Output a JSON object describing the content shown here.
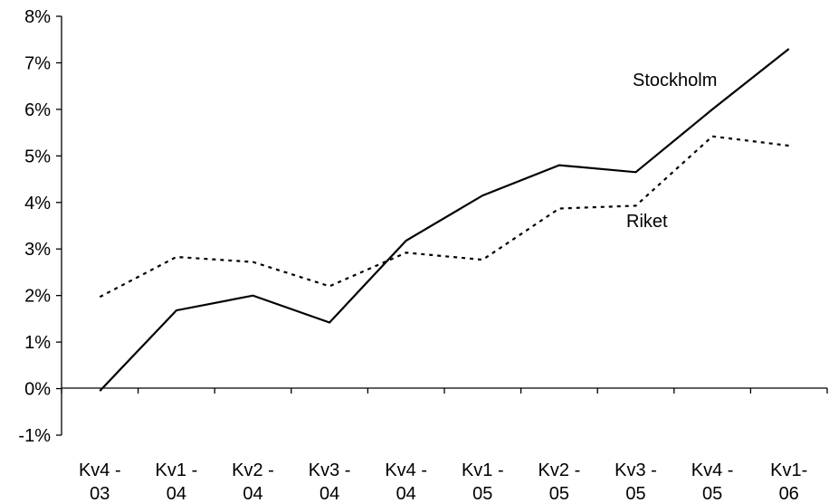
{
  "chart_data": {
    "type": "line",
    "categories": [
      [
        "Kv4 -",
        "03"
      ],
      [
        "Kv1 -",
        "04"
      ],
      [
        "Kv2 -",
        "04"
      ],
      [
        "Kv3 -",
        "04"
      ],
      [
        "Kv4 -",
        "04"
      ],
      [
        "Kv1 -",
        "05"
      ],
      [
        "Kv2 -",
        "05"
      ],
      [
        "Kv3 -",
        "05"
      ],
      [
        "Kv4 -",
        "05"
      ],
      [
        "Kv1-",
        "06"
      ]
    ],
    "y_ticks": [
      "8%",
      "7%",
      "6%",
      "5%",
      "4%",
      "3%",
      "2%",
      "1%",
      "0%",
      "-1%"
    ],
    "ylim": [
      -1,
      8
    ],
    "y_unit": "%",
    "grid": false,
    "legend": "inline labels",
    "series": [
      {
        "name": "Stockholm",
        "style": "solid",
        "color": "#000000",
        "values": [
          -0.05,
          1.68,
          2.0,
          1.42,
          3.18,
          4.15,
          4.8,
          4.65,
          6.0,
          7.3
        ]
      },
      {
        "name": "Riket",
        "style": "dotted",
        "color": "#000000",
        "values": [
          1.97,
          2.83,
          2.72,
          2.2,
          2.92,
          2.77,
          3.87,
          3.93,
          5.42,
          5.22
        ]
      }
    ]
  }
}
